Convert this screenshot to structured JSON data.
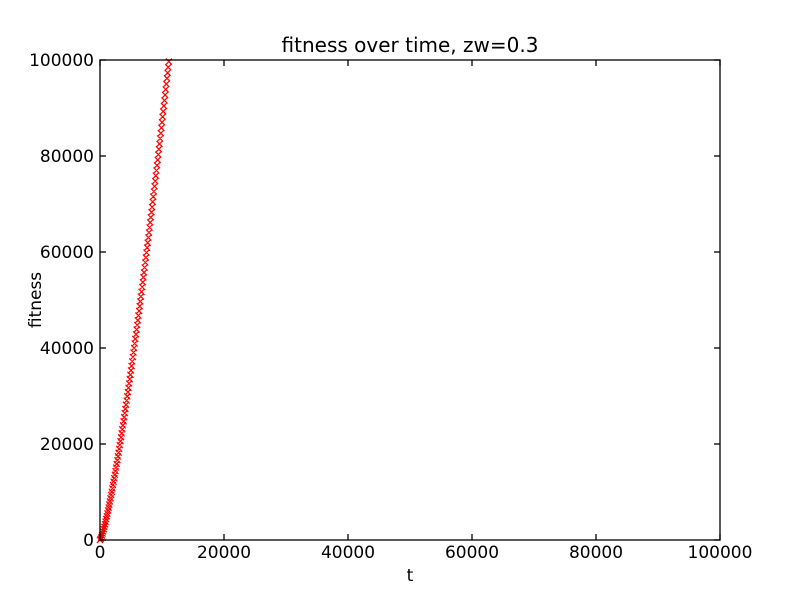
{
  "chart_data": {
    "type": "scatter",
    "title": "fitness over time, zw=0.3",
    "xlabel": "t",
    "ylabel": "fitness",
    "xlim": [
      0,
      100000
    ],
    "ylim": [
      0,
      100000
    ],
    "xticks": [
      0,
      20000,
      40000,
      60000,
      80000,
      100000
    ],
    "yticks": [
      0,
      20000,
      40000,
      60000,
      80000,
      100000
    ],
    "grid": false,
    "legend": false,
    "marker": "x",
    "marker_size_px": 6,
    "colors": {
      "marker": "#ff0000",
      "axes": "#000000",
      "text": "#000000",
      "background": "#ffffff"
    },
    "series": [
      {
        "name": "fitness",
        "points": [
          [
            0,
            0
          ],
          [
            100,
            219
          ],
          [
            200,
            538
          ],
          [
            300,
            912
          ],
          [
            400,
            1325
          ],
          [
            500,
            1771
          ],
          [
            600,
            2245
          ],
          [
            700,
            2744
          ],
          [
            800,
            3263
          ],
          [
            900,
            3803
          ],
          [
            1000,
            4362
          ],
          [
            1100,
            4936
          ],
          [
            1200,
            5529
          ],
          [
            1300,
            6135
          ],
          [
            1400,
            6755
          ],
          [
            1500,
            7389
          ],
          [
            1600,
            8035
          ],
          [
            1700,
            8694
          ],
          [
            1800,
            9365
          ],
          [
            1900,
            10046
          ],
          [
            2000,
            10739
          ],
          [
            2100,
            11443
          ],
          [
            2200,
            12156
          ],
          [
            2300,
            12879
          ],
          [
            2400,
            13612
          ],
          [
            2500,
            14354
          ],
          [
            2600,
            15105
          ],
          [
            2700,
            15864
          ],
          [
            2800,
            16632
          ],
          [
            2900,
            17409
          ],
          [
            3000,
            18194
          ],
          [
            3100,
            18987
          ],
          [
            3200,
            19785
          ],
          [
            3300,
            20593
          ],
          [
            3400,
            21406
          ],
          [
            3500,
            22228
          ],
          [
            3600,
            23060
          ],
          [
            3700,
            23895
          ],
          [
            3800,
            24738
          ],
          [
            3900,
            25587
          ],
          [
            4000,
            26443
          ],
          [
            4100,
            27306
          ],
          [
            4200,
            28174
          ],
          [
            4300,
            29048
          ],
          [
            4400,
            29930
          ],
          [
            4500,
            30816
          ],
          [
            4600,
            31709
          ],
          [
            4700,
            32607
          ],
          [
            4800,
            33511
          ],
          [
            4900,
            34424
          ],
          [
            5000,
            35343
          ],
          [
            5100,
            36261
          ],
          [
            5200,
            37190
          ],
          [
            5300,
            38122
          ],
          [
            5400,
            39060
          ],
          [
            5500,
            40007
          ],
          [
            5600,
            40945
          ],
          [
            5700,
            41900
          ],
          [
            5800,
            42859
          ],
          [
            5900,
            43827
          ],
          [
            6000,
            44798
          ],
          [
            6100,
            45766
          ],
          [
            6200,
            46742
          ],
          [
            6300,
            47724
          ],
          [
            6400,
            48715
          ],
          [
            6500,
            49709
          ],
          [
            6600,
            50702
          ],
          [
            6700,
            51700
          ],
          [
            6800,
            52709
          ],
          [
            6900,
            53714
          ],
          [
            7000,
            54732
          ],
          [
            7100,
            55748
          ],
          [
            7200,
            56772
          ],
          [
            7300,
            57804
          ],
          [
            7400,
            58832
          ],
          [
            7500,
            59870
          ],
          [
            7600,
            60903
          ],
          [
            7700,
            61946
          ],
          [
            7800,
            62996
          ],
          [
            7900,
            64046
          ],
          [
            8000,
            65111
          ],
          [
            8100,
            66162
          ],
          [
            8200,
            67226
          ],
          [
            8300,
            68290
          ],
          [
            8400,
            69360
          ],
          [
            8500,
            70448
          ],
          [
            8600,
            71523
          ],
          [
            8700,
            72611
          ],
          [
            8800,
            73692
          ],
          [
            8900,
            74778
          ],
          [
            9000,
            75890
          ],
          [
            9100,
            76976
          ],
          [
            9200,
            78070
          ],
          [
            9300,
            79180
          ],
          [
            9400,
            80288
          ],
          [
            9500,
            81415
          ],
          [
            9600,
            82515
          ],
          [
            9700,
            83638
          ],
          [
            9800,
            84757
          ],
          [
            9900,
            85882
          ],
          [
            10000,
            87031
          ],
          [
            10100,
            88160
          ],
          [
            10200,
            89300
          ],
          [
            10300,
            90435
          ],
          [
            10400,
            91575
          ],
          [
            10500,
            92725
          ],
          [
            10600,
            93875
          ],
          [
            10700,
            95027
          ],
          [
            10800,
            96182
          ],
          [
            10900,
            97342
          ],
          [
            11000,
            98502
          ],
          [
            11100,
            99677
          ]
        ]
      }
    ]
  }
}
